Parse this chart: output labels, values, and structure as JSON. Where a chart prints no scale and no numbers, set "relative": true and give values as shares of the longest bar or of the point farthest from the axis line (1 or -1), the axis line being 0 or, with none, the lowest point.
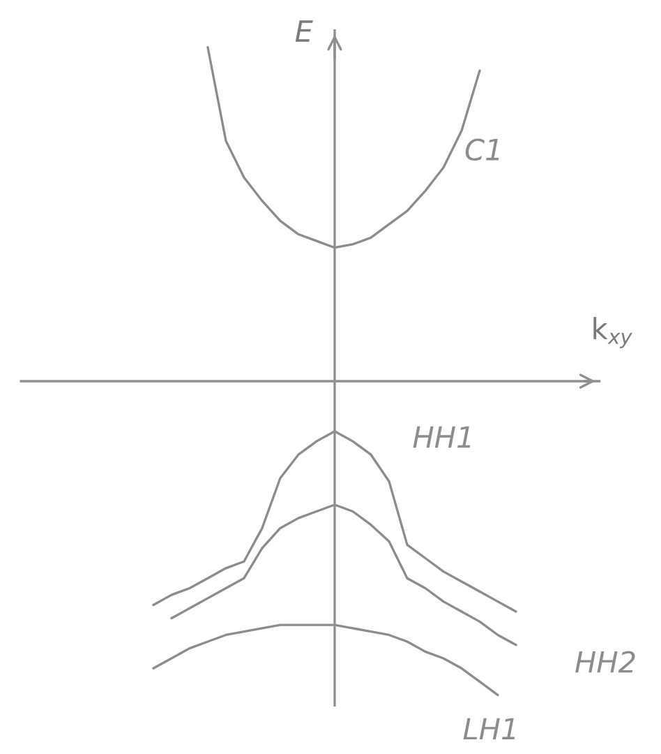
{
  "chart_data": {
    "type": "line",
    "relative": true,
    "xlabel": "k$_{xy}$",
    "ylabel": "E",
    "categories": [
      null,
      null,
      null,
      null,
      null,
      null,
      null,
      null,
      null,
      null,
      null,
      null,
      null,
      null,
      null,
      null,
      null,
      null,
      null,
      null,
      null
    ],
    "series": [
      {
        "name": "C1",
        "color": "#8c8c8c",
        "values": [
          null,
          null,
          null,
          1.0,
          0.72,
          0.61,
          0.54,
          0.48,
          0.44,
          0.42,
          0.4,
          0.41,
          0.43,
          0.47,
          0.51,
          0.57,
          0.64,
          0.75,
          0.93,
          null,
          null
        ]
      },
      {
        "name": "HH1",
        "color": "#8c8c8c",
        "values": [
          -0.67,
          -0.64,
          -0.62,
          -0.59,
          -0.56,
          -0.54,
          -0.44,
          -0.29,
          -0.22,
          -0.18,
          -0.15,
          -0.18,
          -0.22,
          -0.3,
          -0.49,
          -0.53,
          -0.57,
          -0.6,
          -0.63,
          -0.66,
          -0.69
        ]
      },
      {
        "name": "HH2",
        "color": "#8c8c8c",
        "values": [
          null,
          -0.71,
          -0.68,
          -0.65,
          -0.62,
          -0.59,
          -0.5,
          -0.44,
          -0.41,
          -0.39,
          -0.37,
          -0.39,
          -0.43,
          -0.48,
          -0.59,
          -0.62,
          -0.66,
          -0.69,
          -0.72,
          -0.76,
          -0.79
        ]
      },
      {
        "name": "LH1",
        "color": "#8c8c8c",
        "values": [
          -0.86,
          -0.83,
          -0.8,
          -0.78,
          -0.76,
          -0.75,
          -0.74,
          -0.73,
          -0.73,
          -0.73,
          -0.73,
          -0.74,
          -0.75,
          -0.76,
          -0.78,
          -0.81,
          -0.83,
          -0.86,
          -0.9,
          -0.94,
          null
        ]
      }
    ]
  }
}
